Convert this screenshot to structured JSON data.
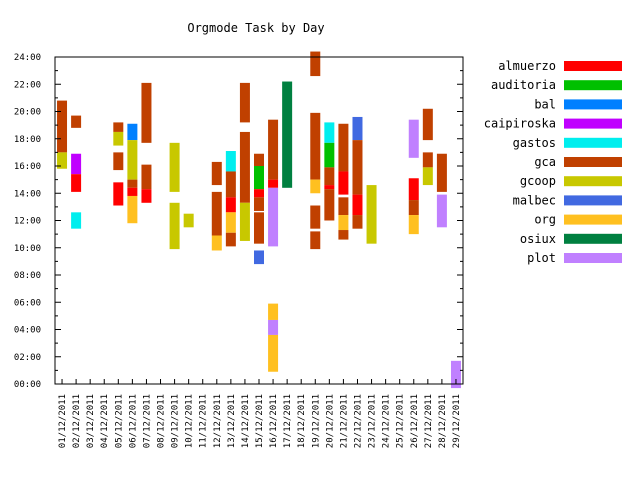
{
  "chart_data": {
    "type": "bar",
    "title": "Orgmode Task by Day",
    "ytick_labels": [
      "00:00",
      "02:00",
      "04:00",
      "06:00",
      "08:00",
      "10:00",
      "12:00",
      "14:00",
      "16:00",
      "18:00",
      "20:00",
      "22:00",
      "24:00"
    ],
    "x_labels": [
      "01/12/2011",
      "02/12/2011",
      "03/12/2011",
      "04/12/2011",
      "05/12/2011",
      "06/12/2011",
      "07/12/2011",
      "08/12/2011",
      "09/12/2011",
      "10/12/2011",
      "11/12/2011",
      "12/12/2011",
      "13/12/2011",
      "14/12/2011",
      "15/12/2011",
      "16/12/2011",
      "17/12/2011",
      "18/12/2011",
      "19/12/2011",
      "20/12/2011",
      "21/12/2011",
      "22/12/2011",
      "23/12/2011",
      "24/12/2011",
      "25/12/2011",
      "26/12/2011",
      "27/12/2011",
      "28/12/2011",
      "29/12/2011"
    ],
    "ylim": [
      0,
      24
    ],
    "legend_position": "right",
    "categories": [
      {
        "name": "almuerzo",
        "color": "#ff0000"
      },
      {
        "name": "auditoria",
        "color": "#00c000"
      },
      {
        "name": "bal",
        "color": "#0080ff"
      },
      {
        "name": "caipiroska",
        "color": "#c000ff"
      },
      {
        "name": "gastos",
        "color": "#00eeee"
      },
      {
        "name": "gca",
        "color": "#c04000"
      },
      {
        "name": "gcoop",
        "color": "#c8c800"
      },
      {
        "name": "malbec",
        "color": "#4169e1"
      },
      {
        "name": "org",
        "color": "#ffc020"
      },
      {
        "name": "osiux",
        "color": "#008040"
      },
      {
        "name": "plot",
        "color": "#c080ff"
      }
    ],
    "segments": [
      {
        "day": 0,
        "cat": "gca",
        "start": 17.0,
        "end": 20.8
      },
      {
        "day": 0,
        "cat": "gcoop",
        "start": 15.8,
        "end": 17.0
      },
      {
        "day": 1,
        "cat": "gca",
        "start": 18.8,
        "end": 19.7
      },
      {
        "day": 1,
        "cat": "caipiroska",
        "start": 15.4,
        "end": 16.9
      },
      {
        "day": 1,
        "cat": "almuerzo",
        "start": 14.1,
        "end": 15.4
      },
      {
        "day": 1,
        "cat": "gastos",
        "start": 11.4,
        "end": 12.6
      },
      {
        "day": 4,
        "cat": "gca",
        "start": 18.5,
        "end": 19.2
      },
      {
        "day": 4,
        "cat": "gcoop",
        "start": 17.5,
        "end": 18.5
      },
      {
        "day": 4,
        "cat": "gca",
        "start": 15.7,
        "end": 17.0
      },
      {
        "day": 4,
        "cat": "almuerzo",
        "start": 13.1,
        "end": 14.8
      },
      {
        "day": 5,
        "cat": "bal",
        "start": 17.9,
        "end": 19.1
      },
      {
        "day": 5,
        "cat": "gcoop",
        "start": 15.0,
        "end": 17.9
      },
      {
        "day": 5,
        "cat": "gca",
        "start": 14.4,
        "end": 15.0
      },
      {
        "day": 5,
        "cat": "almuerzo",
        "start": 13.8,
        "end": 14.4
      },
      {
        "day": 5,
        "cat": "org",
        "start": 11.8,
        "end": 13.8
      },
      {
        "day": 6,
        "cat": "gca",
        "start": 17.7,
        "end": 22.1
      },
      {
        "day": 6,
        "cat": "gca",
        "start": 14.3,
        "end": 16.1
      },
      {
        "day": 6,
        "cat": "almuerzo",
        "start": 13.3,
        "end": 14.3
      },
      {
        "day": 8,
        "cat": "gcoop",
        "start": 14.1,
        "end": 17.7
      },
      {
        "day": 8,
        "cat": "gcoop",
        "start": 9.9,
        "end": 13.3
      },
      {
        "day": 9,
        "cat": "gcoop",
        "start": 11.5,
        "end": 12.5
      },
      {
        "day": 11,
        "cat": "gca",
        "start": 14.6,
        "end": 16.3
      },
      {
        "day": 11,
        "cat": "gca",
        "start": 10.9,
        "end": 14.1
      },
      {
        "day": 11,
        "cat": "org",
        "start": 9.8,
        "end": 10.9
      },
      {
        "day": 12,
        "cat": "gastos",
        "start": 15.6,
        "end": 17.1
      },
      {
        "day": 12,
        "cat": "gca",
        "start": 13.7,
        "end": 15.6
      },
      {
        "day": 12,
        "cat": "almuerzo",
        "start": 12.6,
        "end": 13.7
      },
      {
        "day": 12,
        "cat": "org",
        "start": 11.1,
        "end": 12.6
      },
      {
        "day": 12,
        "cat": "gca",
        "start": 10.1,
        "end": 11.1
      },
      {
        "day": 13,
        "cat": "gca",
        "start": 19.2,
        "end": 22.1
      },
      {
        "day": 13,
        "cat": "gca",
        "start": 13.3,
        "end": 18.5
      },
      {
        "day": 13,
        "cat": "gcoop",
        "start": 10.5,
        "end": 13.3
      },
      {
        "day": 14,
        "cat": "gca",
        "start": 16.0,
        "end": 16.9
      },
      {
        "day": 14,
        "cat": "auditoria",
        "start": 14.3,
        "end": 16.0
      },
      {
        "day": 14,
        "cat": "almuerzo",
        "start": 13.7,
        "end": 14.3
      },
      {
        "day": 14,
        "cat": "gca",
        "start": 12.7,
        "end": 13.7
      },
      {
        "day": 14,
        "cat": "gca",
        "start": 10.3,
        "end": 12.6
      },
      {
        "day": 14,
        "cat": "malbec",
        "start": 8.8,
        "end": 9.8
      },
      {
        "day": 15,
        "cat": "gca",
        "start": 15.0,
        "end": 19.4
      },
      {
        "day": 15,
        "cat": "almuerzo",
        "start": 14.4,
        "end": 15.0
      },
      {
        "day": 15,
        "cat": "plot",
        "start": 10.1,
        "end": 14.4
      },
      {
        "day": 15,
        "cat": "org",
        "start": 4.7,
        "end": 5.9
      },
      {
        "day": 15,
        "cat": "plot",
        "start": 3.6,
        "end": 4.7
      },
      {
        "day": 15,
        "cat": "org",
        "start": 0.9,
        "end": 3.6
      },
      {
        "day": 16,
        "cat": "osiux",
        "start": 14.4,
        "end": 22.2
      },
      {
        "day": 18,
        "cat": "gca",
        "start": 22.6,
        "end": 24.4
      },
      {
        "day": 18,
        "cat": "gca",
        "start": 15.0,
        "end": 19.9
      },
      {
        "day": 18,
        "cat": "org",
        "start": 14.0,
        "end": 15.0
      },
      {
        "day": 18,
        "cat": "gca",
        "start": 11.4,
        "end": 13.1
      },
      {
        "day": 18,
        "cat": "gca",
        "start": 9.9,
        "end": 11.2
      },
      {
        "day": 19,
        "cat": "gastos",
        "start": 17.7,
        "end": 19.2
      },
      {
        "day": 19,
        "cat": "auditoria",
        "start": 15.9,
        "end": 17.7
      },
      {
        "day": 19,
        "cat": "gca",
        "start": 14.6,
        "end": 15.9
      },
      {
        "day": 19,
        "cat": "almuerzo",
        "start": 14.3,
        "end": 14.6
      },
      {
        "day": 19,
        "cat": "gca",
        "start": 12.0,
        "end": 14.3
      },
      {
        "day": 20,
        "cat": "gca",
        "start": 15.6,
        "end": 19.1
      },
      {
        "day": 20,
        "cat": "almuerzo",
        "start": 13.9,
        "end": 15.6
      },
      {
        "day": 20,
        "cat": "gca",
        "start": 12.4,
        "end": 13.7
      },
      {
        "day": 20,
        "cat": "org",
        "start": 11.3,
        "end": 12.4
      },
      {
        "day": 20,
        "cat": "gca",
        "start": 10.6,
        "end": 11.3
      },
      {
        "day": 21,
        "cat": "malbec",
        "start": 17.9,
        "end": 19.6
      },
      {
        "day": 21,
        "cat": "gca",
        "start": 13.9,
        "end": 17.9
      },
      {
        "day": 21,
        "cat": "almuerzo",
        "start": 12.4,
        "end": 13.9
      },
      {
        "day": 21,
        "cat": "gca",
        "start": 11.4,
        "end": 12.4
      },
      {
        "day": 22,
        "cat": "gcoop",
        "start": 10.3,
        "end": 14.6
      },
      {
        "day": 25,
        "cat": "plot",
        "start": 16.6,
        "end": 19.4
      },
      {
        "day": 25,
        "cat": "almuerzo",
        "start": 13.5,
        "end": 15.1
      },
      {
        "day": 25,
        "cat": "gca",
        "start": 12.4,
        "end": 13.5
      },
      {
        "day": 25,
        "cat": "org",
        "start": 11.0,
        "end": 12.4
      },
      {
        "day": 26,
        "cat": "gca",
        "start": 17.9,
        "end": 20.2
      },
      {
        "day": 26,
        "cat": "gca",
        "start": 15.9,
        "end": 17.0
      },
      {
        "day": 26,
        "cat": "gcoop",
        "start": 14.6,
        "end": 15.9
      },
      {
        "day": 27,
        "cat": "gca",
        "start": 14.1,
        "end": 16.9
      },
      {
        "day": 27,
        "cat": "plot",
        "start": 11.5,
        "end": 13.9
      },
      {
        "day": 28,
        "cat": "plot",
        "start": -0.3,
        "end": 1.7
      }
    ]
  }
}
